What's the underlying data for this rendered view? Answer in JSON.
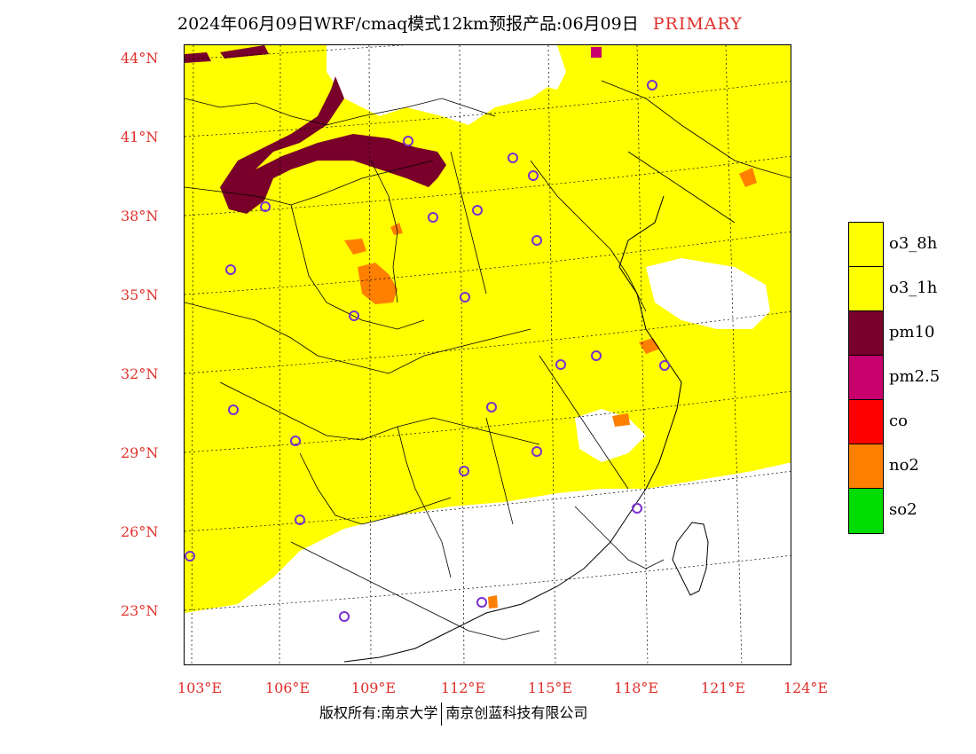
{
  "header": {
    "title": "2024年06月09日WRF/cmaq模式12km预报产品:06月09日",
    "tag": "PRIMARY"
  },
  "latitude_labels": [
    "44°N",
    "41°N",
    "38°N",
    "35°N",
    "32°N",
    "29°N",
    "26°N",
    "23°N"
  ],
  "longitude_labels": [
    "103°E",
    "106°E",
    "109°E",
    "112°E",
    "115°E",
    "118°E",
    "121°E",
    "124°E"
  ],
  "legend": {
    "items": [
      {
        "label": "o3_8h",
        "color": "#ffff00"
      },
      {
        "label": "o3_1h",
        "color": "#ffff00"
      },
      {
        "label": "pm10",
        "color": "#78002a"
      },
      {
        "label": "pm2.5",
        "color": "#c8006e"
      },
      {
        "label": "co",
        "color": "#ff0000"
      },
      {
        "label": "no2",
        "color": "#ff7f00"
      },
      {
        "label": "so2",
        "color": "#00dc00"
      }
    ]
  },
  "footer": {
    "left": "版权所有:南京大学",
    "right": "南京创蓝科技有限公司"
  }
}
